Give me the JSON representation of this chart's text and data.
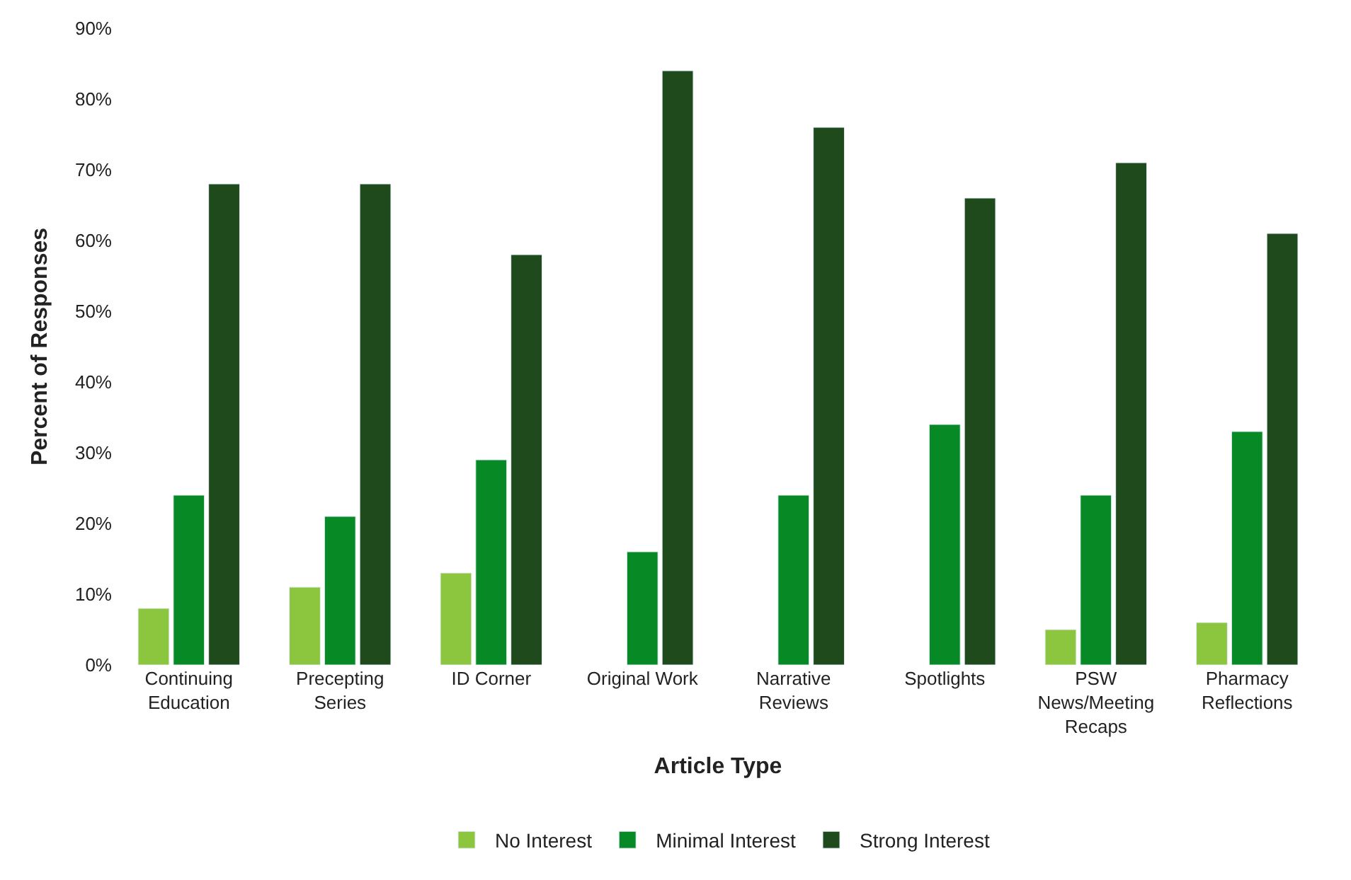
{
  "chart_data": {
    "type": "bar",
    "xlabel": "Article Type",
    "ylabel": "Percent of Responses",
    "categories": [
      "Continuing Education",
      "Precepting Series",
      "ID Corner",
      "Original Work",
      "Narrative Reviews",
      "Spotlights",
      "PSW News/Meeting Recaps",
      "Pharmacy Reflections"
    ],
    "series": [
      {
        "name": "No Interest",
        "color": "#8cc63f",
        "values": [
          8,
          11,
          13,
          null,
          null,
          null,
          5,
          6
        ]
      },
      {
        "name": "Minimal Interest",
        "color": "#078a26",
        "values": [
          24,
          21,
          29,
          16,
          24,
          34,
          24,
          33
        ]
      },
      {
        "name": "Strong Interest",
        "color": "#1e4a1c",
        "values": [
          68,
          68,
          58,
          84,
          76,
          66,
          71,
          61
        ]
      }
    ],
    "ylim": [
      0,
      90
    ],
    "yticks": [
      {
        "value": 0,
        "label": "0%"
      },
      {
        "value": 10,
        "label": "10%"
      },
      {
        "value": 20,
        "label": "20%"
      },
      {
        "value": 30,
        "label": "30%"
      },
      {
        "value": 40,
        "label": "40%"
      },
      {
        "value": 50,
        "label": "50%"
      },
      {
        "value": 60,
        "label": "60%"
      },
      {
        "value": 70,
        "label": "70%"
      },
      {
        "value": 80,
        "label": "80%"
      },
      {
        "value": 90,
        "label": "90%"
      }
    ],
    "legend": "bottom"
  }
}
